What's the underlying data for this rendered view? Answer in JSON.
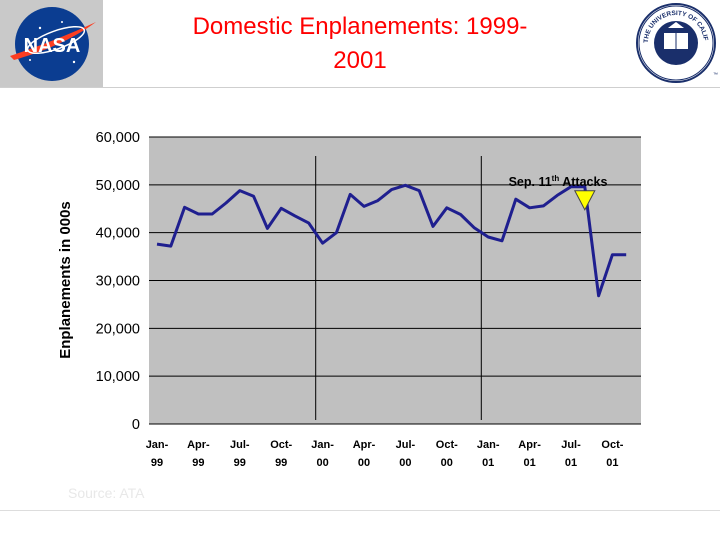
{
  "slide": {
    "title": "Domestic Enplanements: 1999-2001",
    "title_line1": "Domestic Enplanements: 1999-",
    "title_line2": "2001",
    "source_note": "Source: ATA"
  },
  "logos": {
    "left": {
      "name": "nasa-logo",
      "text": "NASA"
    },
    "right": {
      "name": "university-seal",
      "text": "THE UNIVERSITY OF CALIFORNIA 1868"
    }
  },
  "colors": {
    "title": "#ff0000",
    "line": "#1f1f8f",
    "plot_bg": "#c0c0c0",
    "grid": "#000000",
    "marker_fill": "#ffff00",
    "nasa_blue": "#0b3d91",
    "nasa_red": "#fc3d21"
  },
  "chart_data": {
    "type": "line",
    "title": "",
    "xlabel": "",
    "ylabel": "Enplanements in 000s",
    "ylim": [
      0,
      60000
    ],
    "yticks": [
      0,
      10000,
      20000,
      30000,
      40000,
      50000,
      60000
    ],
    "ytick_labels": [
      "0",
      "10,000",
      "20,000",
      "30,000",
      "40,000",
      "50,000",
      "60,000"
    ],
    "grid": "horizontal",
    "x_tick_labels": [
      {
        "index": 0,
        "line1": "Jan-",
        "line2": "99"
      },
      {
        "index": 3,
        "line1": "Apr-",
        "line2": "99"
      },
      {
        "index": 6,
        "line1": "Jul-",
        "line2": "99"
      },
      {
        "index": 9,
        "line1": "Oct-",
        "line2": "99"
      },
      {
        "index": 12,
        "line1": "Jan-",
        "line2": "00"
      },
      {
        "index": 15,
        "line1": "Apr-",
        "line2": "00"
      },
      {
        "index": 18,
        "line1": "Jul-",
        "line2": "00"
      },
      {
        "index": 21,
        "line1": "Oct-",
        "line2": "00"
      },
      {
        "index": 24,
        "line1": "Jan-",
        "line2": "01"
      },
      {
        "index": 27,
        "line1": "Apr-",
        "line2": "01"
      },
      {
        "index": 30,
        "line1": "Jul-",
        "line2": "01"
      },
      {
        "index": 33,
        "line1": "Oct-",
        "line2": "01"
      }
    ],
    "year_dividers": [
      11.5,
      23.5
    ],
    "series": [
      {
        "name": "Domestic Enplanements",
        "values": [
          37600,
          37200,
          45300,
          43900,
          43900,
          46200,
          48800,
          47600,
          40900,
          45100,
          43500,
          42000,
          37800,
          40000,
          48000,
          45500,
          46700,
          49000,
          49900,
          48800,
          41300,
          45200,
          43800,
          41000,
          39100,
          38300,
          47000,
          45200,
          45600,
          47800,
          49600,
          49600,
          26800,
          35400,
          35400
        ]
      }
    ],
    "annotation": {
      "text": "Sep. 11",
      "superscript": "th",
      "text_after": " Attacks",
      "index": 31,
      "value": 47300
    }
  }
}
